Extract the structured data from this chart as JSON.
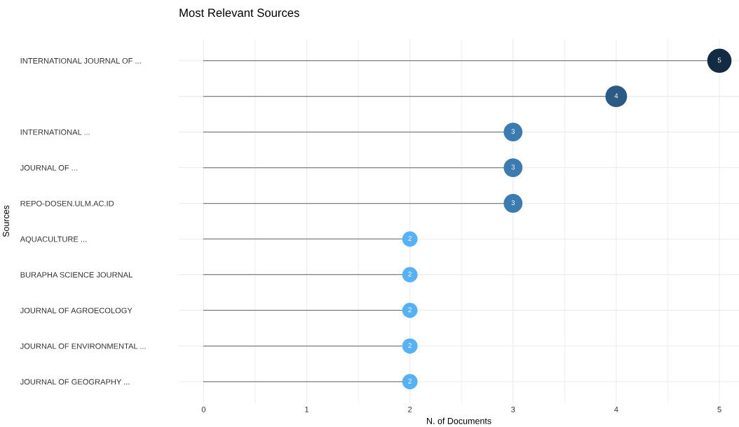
{
  "chart_data": {
    "type": "lollipop",
    "orientation": "horizontal",
    "title": "Most Relevant Sources",
    "xlabel": "N. of Documents",
    "ylabel": "Sources",
    "categories": [
      "INTERNATIONAL JOURNAL OF ...",
      null,
      "INTERNATIONAL ...",
      "JOURNAL OF ...",
      "REPO-DOSEN.ULM.AC.ID",
      "AQUACULTURE ...",
      "BURAPHA SCIENCE JOURNAL",
      "JOURNAL OF AGROECOLOGY",
      "JOURNAL OF ENVIRONMENTAL ...",
      "JOURNAL OF GEOGRAPHY ..."
    ],
    "values": [
      5,
      4,
      3,
      3,
      3,
      2,
      2,
      2,
      2,
      2
    ],
    "colors": [
      "#132b43",
      "#2b5a85",
      "#3c7bb2",
      "#3c7bb2",
      "#3c7bb2",
      "#56b1f7",
      "#56b1f7",
      "#56b1f7",
      "#56b1f7",
      "#56b1f7"
    ],
    "xlim": [
      -0.24,
      5.19
    ],
    "xticks": [
      0,
      1,
      2,
      3,
      4,
      5
    ],
    "sizes": [
      1,
      0.8,
      0.6,
      0.6,
      0.6,
      0.4,
      0.4,
      0.4,
      0.4,
      0.4
    ],
    "data_labels": true,
    "grid": true,
    "marker": "circle",
    "legend": false
  }
}
